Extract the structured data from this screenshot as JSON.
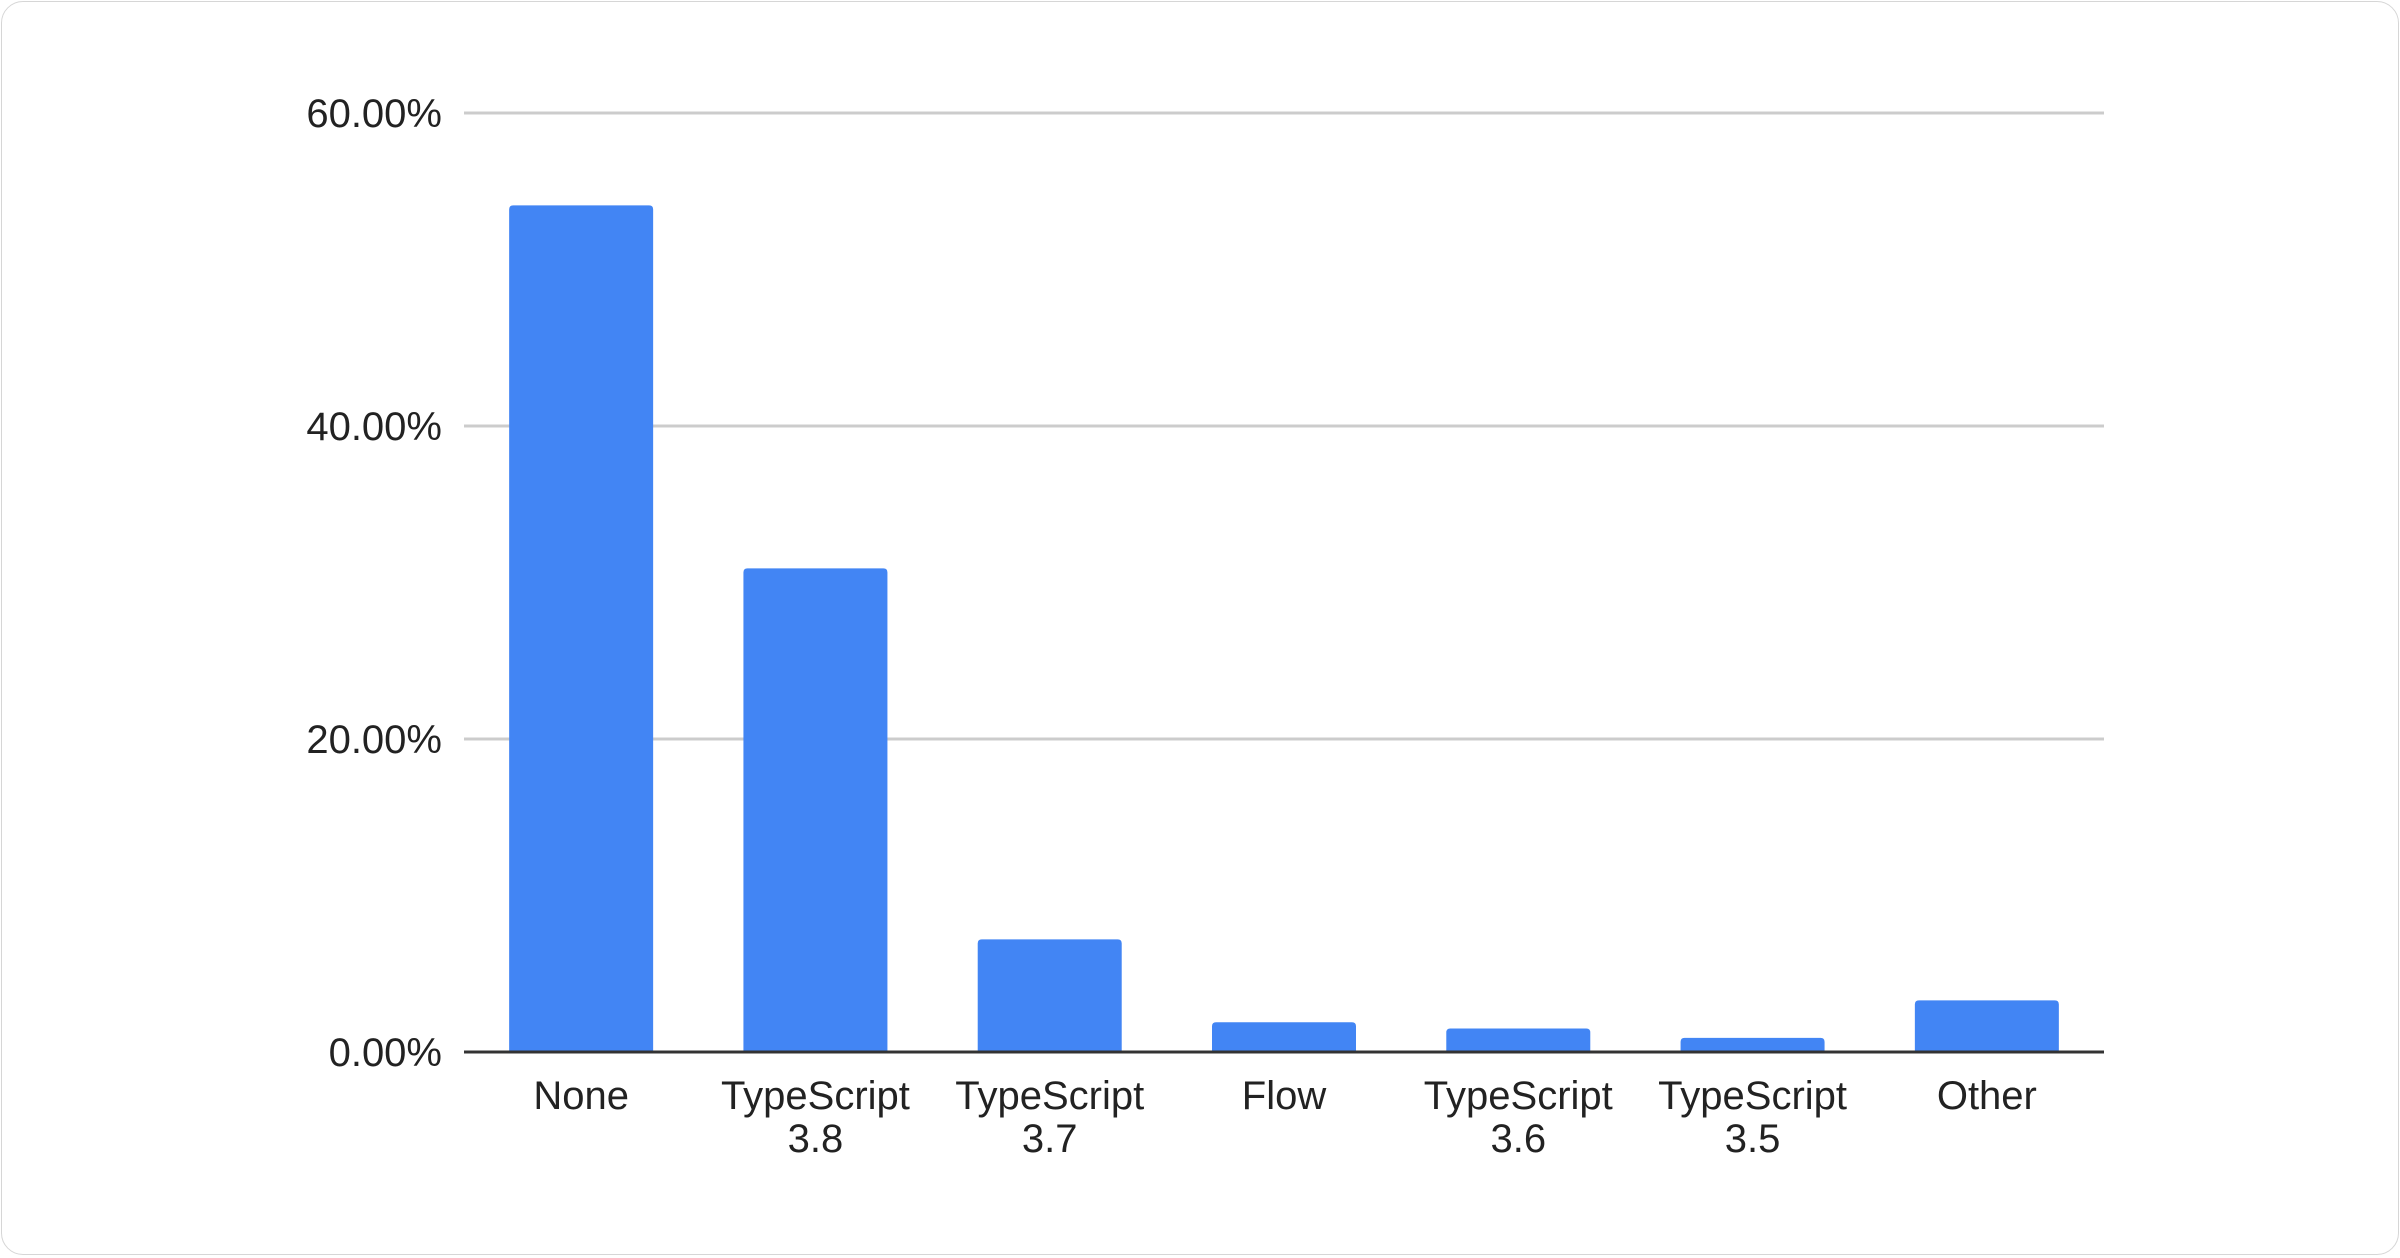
{
  "chart_data": {
    "type": "bar",
    "title": "",
    "xlabel": "",
    "ylabel": "",
    "categories": [
      "None",
      "TypeScript 3.8",
      "TypeScript 3.7",
      "Flow",
      "TypeScript 3.6",
      "TypeScript 3.5",
      "Other"
    ],
    "category_lines": [
      [
        "None"
      ],
      [
        "TypeScript",
        "3.8"
      ],
      [
        "TypeScript",
        "3.7"
      ],
      [
        "Flow"
      ],
      [
        "TypeScript",
        "3.6"
      ],
      [
        "TypeScript",
        "3.5"
      ],
      [
        "Other"
      ]
    ],
    "values": [
      54.1,
      30.9,
      7.2,
      1.9,
      1.5,
      0.9,
      3.3
    ],
    "ylim": [
      0,
      60
    ],
    "yticks": [
      0,
      20,
      40,
      60
    ],
    "ytick_labels": [
      "0.00%",
      "20.00%",
      "40.00%",
      "60.00%"
    ],
    "grid": true,
    "legend": "none",
    "bar_color": "#4285f4",
    "grid_color": "#cccccc",
    "axis_color": "#333333"
  }
}
